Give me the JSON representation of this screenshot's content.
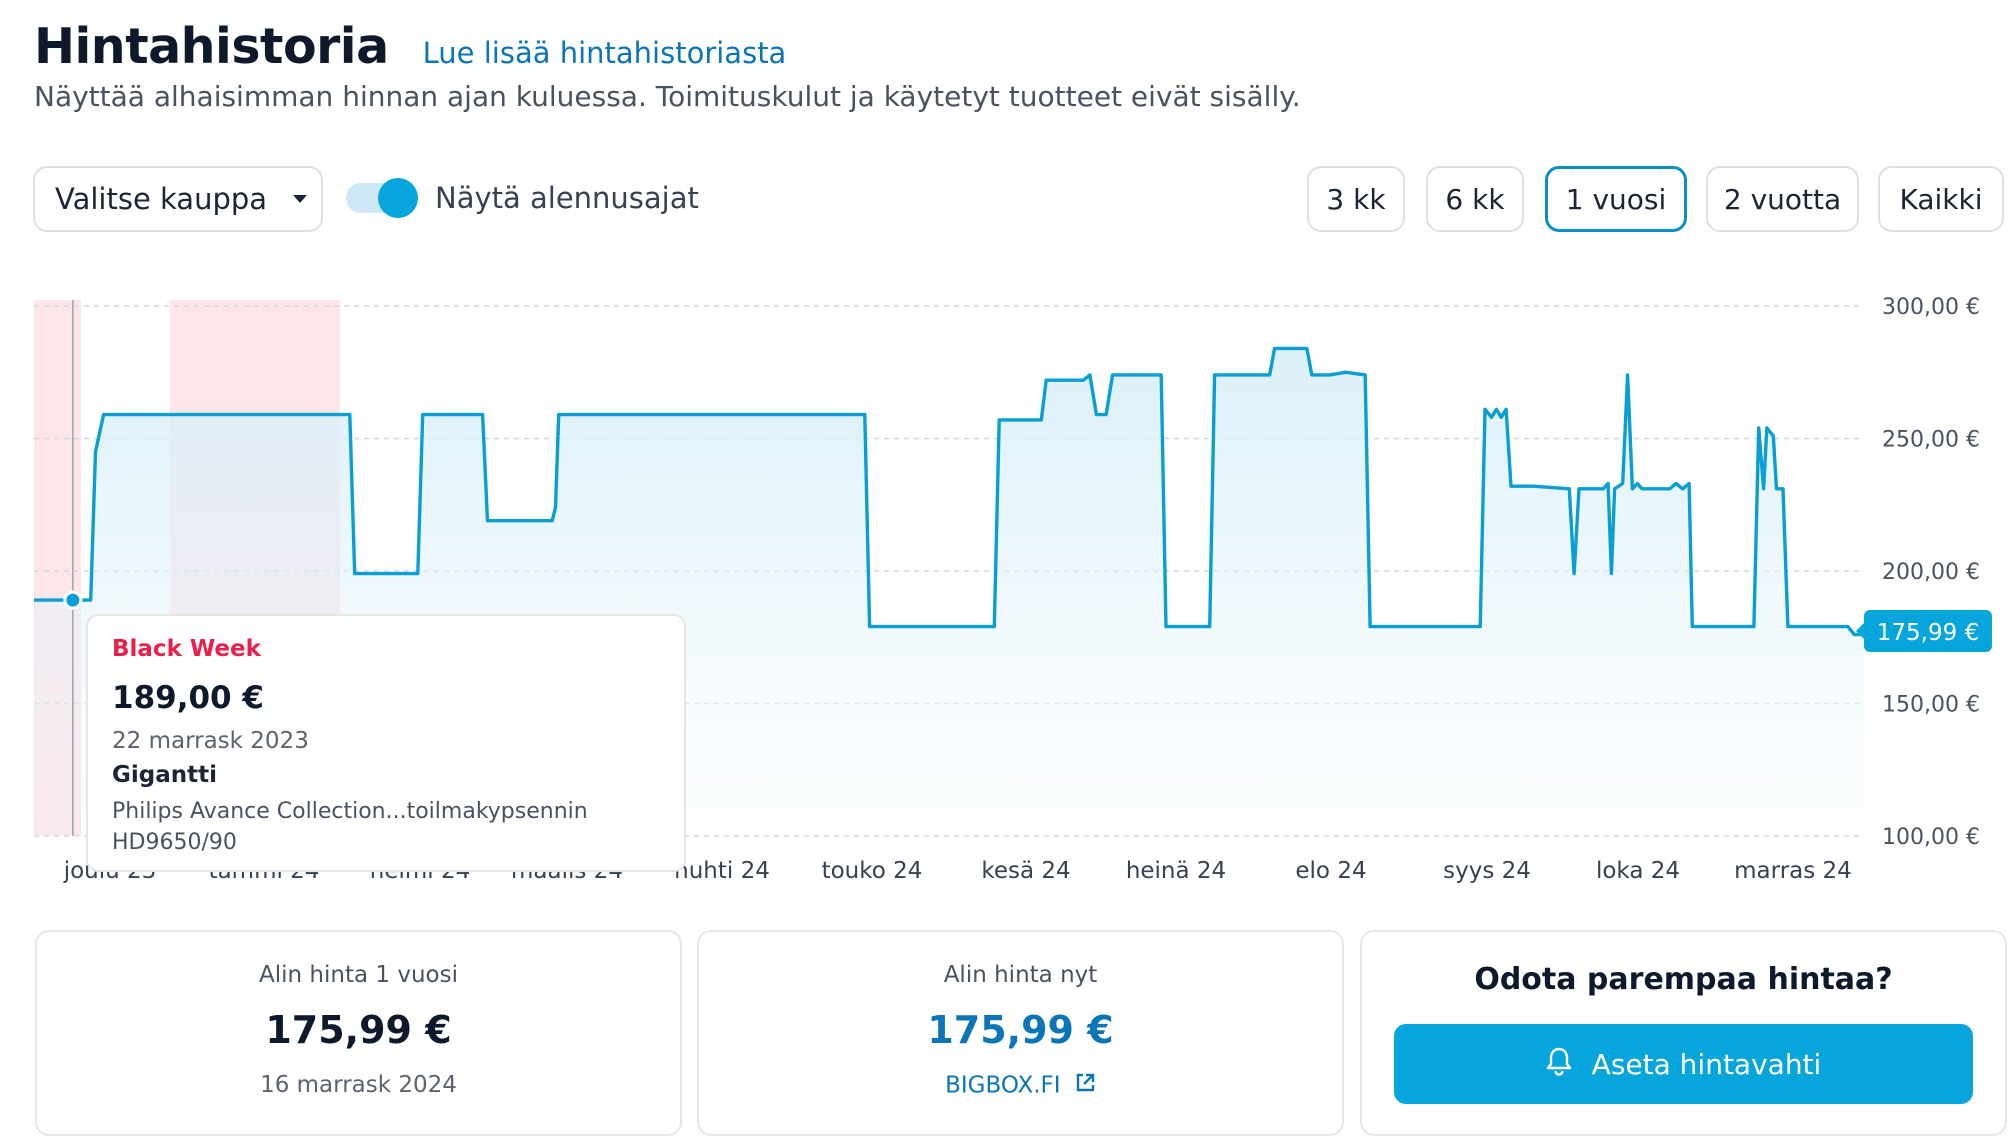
{
  "header": {
    "title": "Hintahistoria",
    "more_link": "Lue lisää hintahistoriasta",
    "subtitle": "Näyttää alhaisimman hinnan ajan kuluessa. Toimituskulut ja käytetyt tuotteet eivät sisälly."
  },
  "controls": {
    "store_select": "Valitse kauppa",
    "toggle_label": "Näytä alennusajat",
    "toggle_on": true,
    "ranges": [
      "3 kk",
      "6 kk",
      "1 vuosi",
      "2 vuotta",
      "Kaikki"
    ],
    "active_range": "1 vuosi"
  },
  "tooltip": {
    "title": "Black Week",
    "price": "189,00 €",
    "date": "22 marrask 2023",
    "store": "Gigantti",
    "product_line1": "Philips Avance Collection...toilmakypsennin",
    "product_line2": "HD9650/90"
  },
  "chart_data": {
    "type": "line",
    "x_ticks": [
      "joulu 23",
      "tammi 24",
      "helmi 24",
      "maalis 24",
      "huhti 24",
      "touko 24",
      "kesä 24",
      "heinä 24",
      "elo 24",
      "syys 24",
      "loka 24",
      "marras 24"
    ],
    "y_ticks": [
      "300,00 €",
      "250,00 €",
      "200,00 €",
      "150,00 €",
      "100,00 €"
    ],
    "ylim": [
      100,
      300
    ],
    "current_price_label": "175,99 €",
    "grid": true,
    "discount_periods": [
      "Black Week",
      "tammi 24 – helmi 24"
    ],
    "series": [
      {
        "points": [
          [
            0,
            189
          ],
          [
            3.5,
            189
          ],
          [
            3.8,
            245
          ],
          [
            4.3,
            259
          ],
          [
            19.5,
            259
          ],
          [
            19.8,
            199
          ],
          [
            23.7,
            199
          ],
          [
            24,
            259
          ],
          [
            27.7,
            259
          ],
          [
            28,
            219
          ],
          [
            32,
            219
          ],
          [
            32.2,
            224
          ],
          [
            32.4,
            259
          ],
          [
            51.3,
            259
          ],
          [
            51.6,
            179
          ],
          [
            59.3,
            179
          ],
          [
            59.6,
            257
          ],
          [
            61.2,
            257
          ],
          [
            62.2,
            257
          ],
          [
            62.5,
            272
          ],
          [
            64.8,
            272
          ],
          [
            65.2,
            274
          ],
          [
            65.6,
            259
          ],
          [
            66.2,
            259
          ],
          [
            66.6,
            274
          ],
          [
            69.6,
            274
          ],
          [
            69.9,
            179
          ],
          [
            72.6,
            179
          ],
          [
            72.9,
            274
          ],
          [
            76.3,
            274
          ],
          [
            76.6,
            284
          ],
          [
            78.6,
            284
          ],
          [
            78.9,
            274
          ],
          [
            80,
            274
          ],
          [
            81,
            275
          ],
          [
            82.2,
            274
          ],
          [
            82.5,
            179
          ],
          [
            89.3,
            179
          ],
          [
            89.6,
            261
          ],
          [
            90,
            258
          ],
          [
            90.3,
            261
          ],
          [
            90.6,
            258
          ],
          [
            90.9,
            261
          ],
          [
            91.2,
            232
          ],
          [
            92.6,
            232
          ],
          [
            94.8,
            231
          ],
          [
            95.1,
            199
          ],
          [
            95.4,
            231
          ],
          [
            96.9,
            231
          ],
          [
            97.2,
            233
          ],
          [
            97.4,
            199
          ],
          [
            97.6,
            231
          ],
          [
            98.1,
            233
          ],
          [
            98.4,
            274
          ],
          [
            98.7,
            231
          ],
          [
            99,
            233
          ],
          [
            99.3,
            231
          ],
          [
            101,
            231
          ],
          [
            101.4,
            233
          ],
          [
            101.8,
            231
          ],
          [
            102.2,
            233
          ],
          [
            102.4,
            179
          ],
          [
            106.2,
            179
          ],
          [
            106.5,
            254
          ],
          [
            106.8,
            231
          ],
          [
            107,
            254
          ],
          [
            107.4,
            251
          ],
          [
            107.6,
            231
          ],
          [
            108,
            231
          ],
          [
            108.3,
            179
          ],
          [
            112,
            179
          ],
          [
            112.4,
            176
          ],
          [
            113,
            176
          ]
        ]
      }
    ]
  },
  "cards": {
    "lowest_year": {
      "label": "Alin hinta 1 vuosi",
      "value": "175,99 €",
      "date": "16 marrask 2024"
    },
    "lowest_now": {
      "label": "Alin hinta nyt",
      "value": "175,99 €",
      "store": "BIGBOX.FI"
    },
    "alert": {
      "heading": "Odota parempaa hintaa?",
      "button": "Aseta hintavahti"
    }
  },
  "colors": {
    "accent": "#06a6dc",
    "link": "#0b75b8",
    "discount_band": "#fde6ea",
    "discount_text": "#e8204a"
  }
}
